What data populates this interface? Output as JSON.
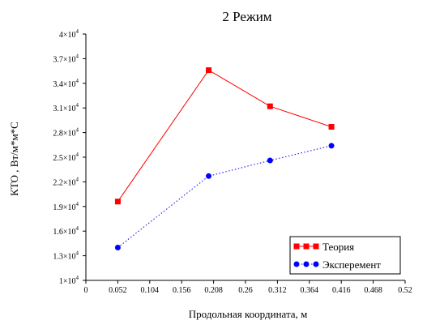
{
  "chart_data": {
    "type": "line",
    "title": "2 Режим",
    "xlabel": "Продольная координата, м",
    "ylabel": "КТО , Вт/м*м*С",
    "xlim": [
      0,
      0.52
    ],
    "ylim": [
      10000,
      40000
    ],
    "x_ticks": [
      "0",
      "0.052",
      "0.104",
      "0.156",
      "0.208",
      "0.26",
      "0.312",
      "0.364",
      "0.416",
      "0.468",
      "0.52"
    ],
    "x_tick_values": [
      0,
      0.052,
      0.104,
      0.156,
      0.208,
      0.26,
      0.312,
      0.364,
      0.416,
      0.468,
      0.52
    ],
    "y_ticks": [
      {
        "value": 10000,
        "mantissa": "1",
        "base": "×10",
        "exp": "4"
      },
      {
        "value": 13000,
        "mantissa": "1.3",
        "base": "×10",
        "exp": "4"
      },
      {
        "value": 16000,
        "mantissa": "1.6",
        "base": "×10",
        "exp": "4"
      },
      {
        "value": 19000,
        "mantissa": "1.9",
        "base": "×10",
        "exp": "4"
      },
      {
        "value": 22000,
        "mantissa": "2.2",
        "base": "×10",
        "exp": "4"
      },
      {
        "value": 25000,
        "mantissa": "2.5",
        "base": "×10",
        "exp": "4"
      },
      {
        "value": 28000,
        "mantissa": "2.8",
        "base": "×10",
        "exp": "4"
      },
      {
        "value": 31000,
        "mantissa": "3.1",
        "base": "×10",
        "exp": "4"
      },
      {
        "value": 34000,
        "mantissa": "3.4",
        "base": "×10",
        "exp": "4"
      },
      {
        "value": 37000,
        "mantissa": "3.7",
        "base": "×10",
        "exp": "4"
      },
      {
        "value": 40000,
        "mantissa": "4",
        "base": "×10",
        "exp": "4"
      }
    ],
    "grid": false,
    "legend_position": "bottom-right",
    "series": [
      {
        "name": "Теория",
        "color": "#ff0000",
        "marker": "square",
        "line_style": "solid",
        "x": [
          0.052,
          0.2,
          0.3,
          0.4
        ],
        "y": [
          19600,
          35600,
          31200,
          28700
        ]
      },
      {
        "name": "Эксперемент",
        "color": "#0000ff",
        "marker": "circle",
        "line_style": "dotted",
        "x": [
          0.052,
          0.2,
          0.3,
          0.4
        ],
        "y": [
          14000,
          22700,
          24600,
          26400
        ]
      }
    ]
  }
}
